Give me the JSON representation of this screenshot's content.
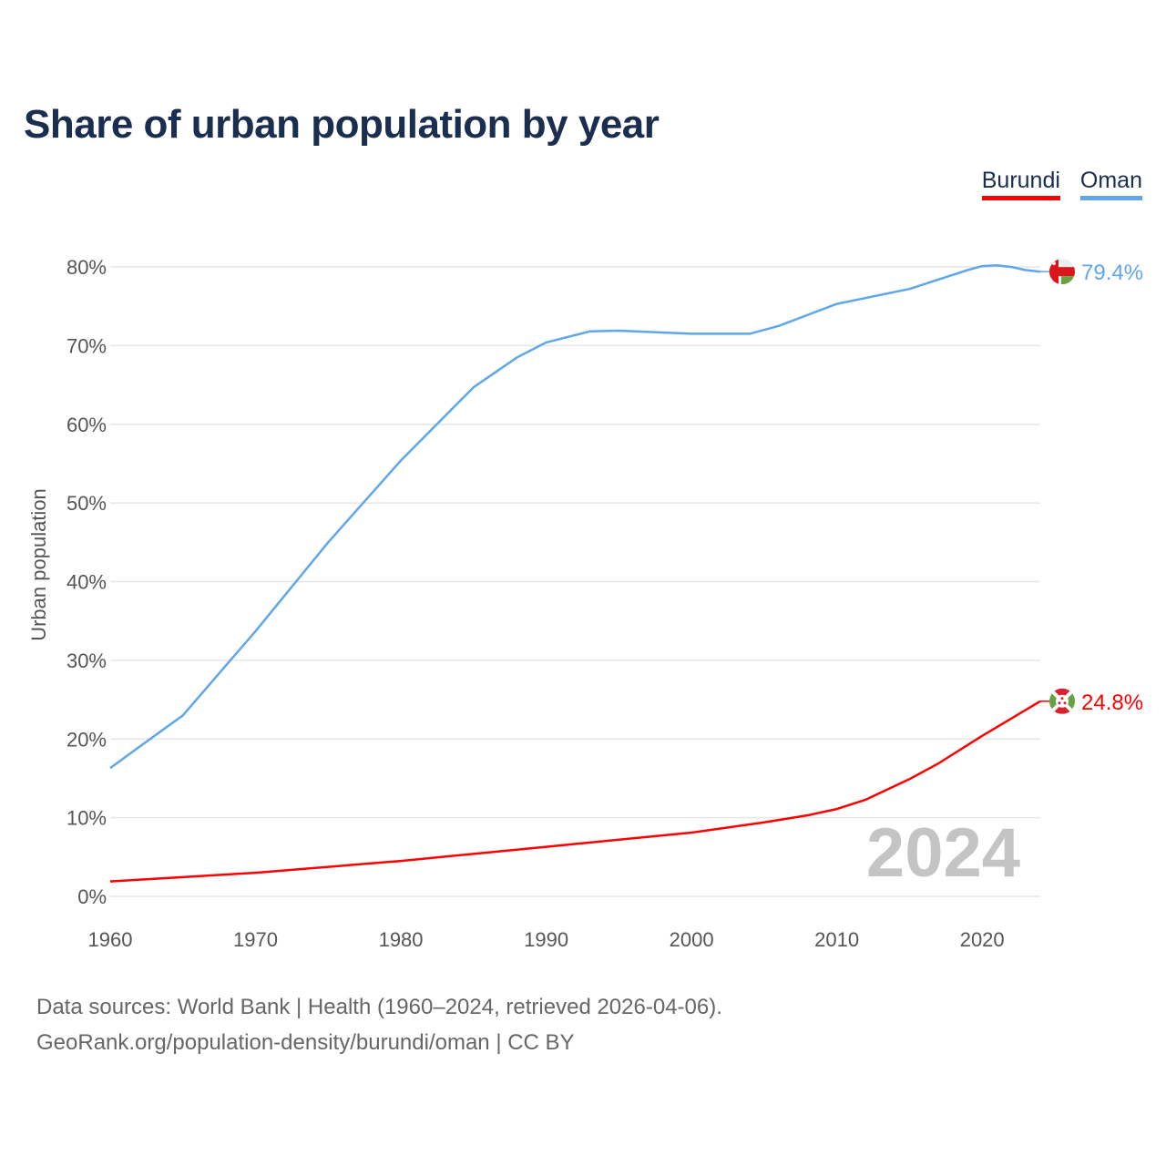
{
  "title": "Share of urban population by year",
  "legend": [
    {
      "name": "Burundi",
      "color": "#ff0000"
    },
    {
      "name": "Oman",
      "color": "#5fa7ea"
    }
  ],
  "year_watermark": "2024",
  "footer": {
    "line1": "Data sources: World Bank | Health (1960–2024, retrieved 2026-04-06).",
    "line2": "GeoRank.org/population-density/burundi/oman | CC BY"
  },
  "chart_data": {
    "type": "line",
    "title": "Share of urban population by year",
    "xlabel": "",
    "ylabel": "Urban population",
    "xlim": [
      1960,
      2024
    ],
    "ylim": [
      0,
      80
    ],
    "x_ticks": [
      "1960",
      "1970",
      "1980",
      "1990",
      "2000",
      "2010",
      "2020"
    ],
    "y_ticks": [
      "0%",
      "10%",
      "20%",
      "30%",
      "40%",
      "50%",
      "60%",
      "70%",
      "80%"
    ],
    "grid": true,
    "legend_position": "top-right",
    "series": [
      {
        "name": "Oman",
        "color": "#5fa7ea",
        "end_label": "79.4%",
        "flag": "oman",
        "points": [
          [
            1960,
            16.3
          ],
          [
            1962,
            19.0
          ],
          [
            1965,
            23.0
          ],
          [
            1970,
            33.7
          ],
          [
            1975,
            45.0
          ],
          [
            1980,
            55.4
          ],
          [
            1985,
            64.7
          ],
          [
            1988,
            68.5
          ],
          [
            1990,
            70.4
          ],
          [
            1993,
            71.8
          ],
          [
            1995,
            71.9
          ],
          [
            2000,
            71.5
          ],
          [
            2004,
            71.5
          ],
          [
            2006,
            72.5
          ],
          [
            2010,
            75.3
          ],
          [
            2015,
            77.2
          ],
          [
            2017,
            78.4
          ],
          [
            2019,
            79.6
          ],
          [
            2020,
            80.1
          ],
          [
            2021,
            80.2
          ],
          [
            2022,
            80.0
          ],
          [
            2023,
            79.6
          ],
          [
            2024,
            79.4
          ]
        ]
      },
      {
        "name": "Burundi",
        "color": "#ff0000",
        "end_label": "24.8%",
        "flag": "burundi",
        "points": [
          [
            1960,
            1.9
          ],
          [
            1970,
            3.0
          ],
          [
            1980,
            4.5
          ],
          [
            1990,
            6.3
          ],
          [
            2000,
            8.1
          ],
          [
            2005,
            9.4
          ],
          [
            2008,
            10.3
          ],
          [
            2010,
            11.1
          ],
          [
            2012,
            12.3
          ],
          [
            2015,
            14.9
          ],
          [
            2017,
            16.9
          ],
          [
            2020,
            20.4
          ],
          [
            2022,
            22.6
          ],
          [
            2024,
            24.8
          ]
        ]
      }
    ]
  }
}
